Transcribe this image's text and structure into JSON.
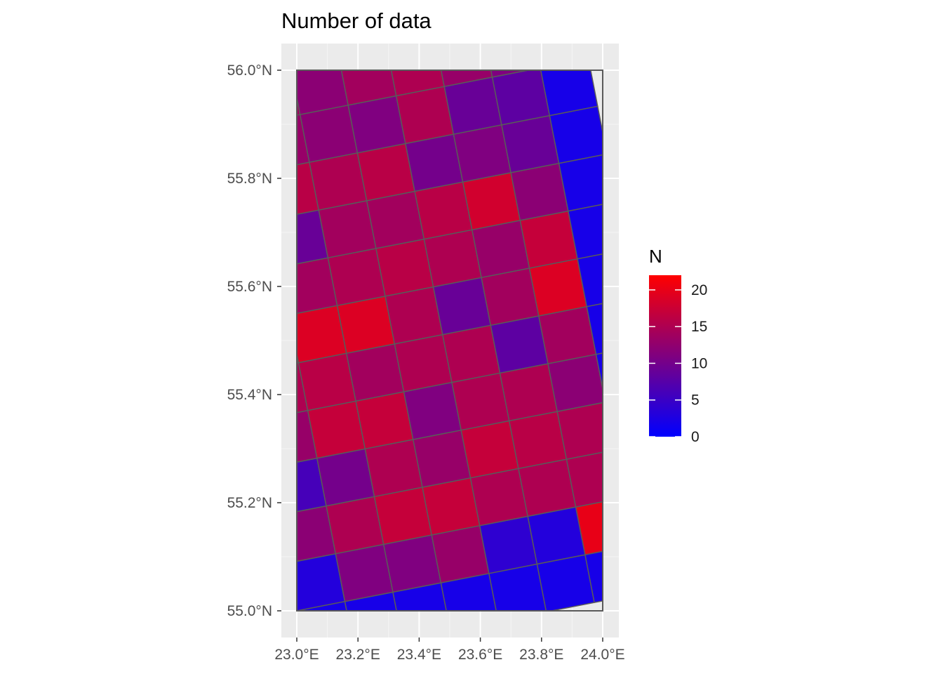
{
  "chart_data": {
    "type": "heatmap",
    "title": "Number of data",
    "xlabel": "",
    "ylabel": "",
    "xlim": [
      23.0,
      24.0
    ],
    "ylim": [
      55.0,
      56.0
    ],
    "x_ticks": [
      23.0,
      23.2,
      23.4,
      23.6,
      23.8,
      24.0
    ],
    "x_tick_labels": [
      "23.0°E",
      "23.2°E",
      "23.4°E",
      "23.6°E",
      "23.8°E",
      "24.0°E"
    ],
    "y_ticks": [
      55.0,
      55.2,
      55.4,
      55.6,
      55.8,
      56.0
    ],
    "y_tick_labels": [
      "55.0°N",
      "55.2°N",
      "55.4°N",
      "55.6°N",
      "55.8°N",
      "56.0°N"
    ],
    "grid": true,
    "background": "#ebebeb",
    "cell_border_color": "#5a5a5a",
    "grid_cell_size_deg": [
      0.16,
      0.09
    ],
    "grid_rotation_deg": -11,
    "grid_anchor": [
      23.0,
      55.0
    ],
    "rows": 12,
    "cols": 7,
    "values": [
      [
        3,
        11,
        11,
        13,
        4,
        3,
        20
      ],
      [
        12,
        15,
        17,
        17,
        15,
        15,
        15
      ],
      [
        6,
        10,
        15,
        13,
        17,
        16,
        15
      ],
      [
        13,
        17,
        17,
        11,
        15,
        15,
        12
      ],
      [
        15,
        16,
        14,
        15,
        15,
        8,
        14
      ],
      [
        16,
        19,
        19,
        15,
        9,
        14,
        19
      ],
      [
        12,
        14,
        15,
        16,
        15,
        13,
        17
      ],
      [
        5,
        9,
        14,
        14,
        16,
        18,
        12
      ],
      [
        13,
        16,
        15,
        16,
        10,
        11,
        9
      ],
      [
        18,
        13,
        12,
        11,
        15,
        9,
        8
      ],
      [
        14,
        14,
        12,
        14,
        15,
        13,
        11
      ],
      [
        13,
        14,
        16,
        14,
        11,
        11,
        14
      ]
    ],
    "legend": {
      "title": "N",
      "min": 0,
      "max": 22,
      "ticks": [
        0,
        5,
        10,
        15,
        20
      ],
      "tick_labels": [
        "0",
        "5",
        "10",
        "15",
        "20"
      ],
      "low_color": "#0000ff",
      "high_color": "#ff0000",
      "placement": "right"
    }
  }
}
